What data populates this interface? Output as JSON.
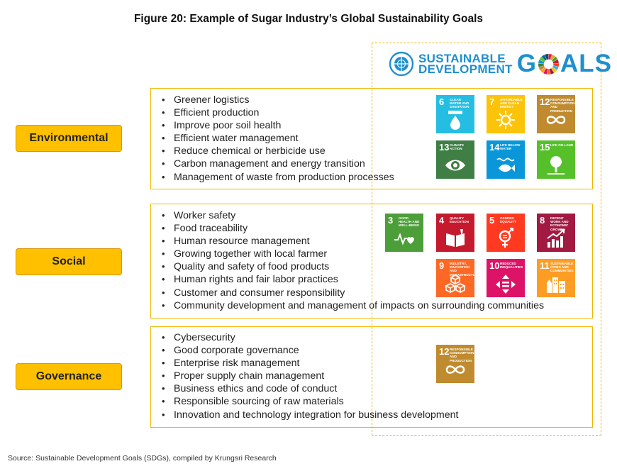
{
  "figure": {
    "title": "Figure 20: Example of Sugar Industry’s Global Sustainability Goals",
    "source": "Source: Sustainable Development Goals (SDGs), compiled by Krungsri Research"
  },
  "sdg_logo": {
    "line1": "SUSTAINABLE",
    "line2": "DEVELOPMENT",
    "goals_g": "G",
    "goals_als": "ALS"
  },
  "sections": [
    {
      "label": "Environmental",
      "items": [
        "Greener logistics",
        "Efficient production",
        "Improve poor soil health",
        "Efficient water management",
        "Reduce chemical or herbicide use",
        "Carbon management and energy transition",
        "Management of waste from production processes"
      ]
    },
    {
      "label": "Social",
      "items": [
        "Worker safety",
        "Food traceability",
        "Human resource management",
        "Growing together with local farmer",
        "Quality and safety of food products",
        "Human rights and fair labor practices",
        "Customer and consumer responsibility",
        "Community development and management of impacts on surrounding communities"
      ]
    },
    {
      "label": "Governance",
      "items": [
        "Cybersecurity",
        "Good corporate governance",
        "Enterprise risk management",
        "Proper supply chain management",
        "Business ethics and code of conduct",
        "Responsible sourcing of raw materials",
        "Innovation and technology integration for business development"
      ]
    }
  ],
  "sdg_tiles": {
    "g6": {
      "num": "6",
      "name": "Clean water and sanitation",
      "color": "#26bde2",
      "icon": "water-drop-icon"
    },
    "g7": {
      "num": "7",
      "name": "Affordable and clean energy",
      "color": "#fcc30b",
      "icon": "sun-icon"
    },
    "g12": {
      "num": "12",
      "name": "Responsible consumption and production",
      "color": "#bf8b2e",
      "icon": "infinity-icon"
    },
    "g13": {
      "num": "13",
      "name": "Climate action",
      "color": "#3f7e44",
      "icon": "eye-globe-icon"
    },
    "g14": {
      "num": "14",
      "name": "Life below water",
      "color": "#0a97d9",
      "icon": "fish-icon"
    },
    "g15": {
      "num": "15",
      "name": "Life on land",
      "color": "#56c02b",
      "icon": "tree-icon"
    },
    "g3": {
      "num": "3",
      "name": "Good health and well-being",
      "color": "#4c9f38",
      "icon": "heartbeat-icon"
    },
    "g4": {
      "num": "4",
      "name": "Quality education",
      "color": "#c5192d",
      "icon": "book-icon"
    },
    "g5": {
      "num": "5",
      "name": "Gender equality",
      "color": "#ff3a21",
      "icon": "gender-icon"
    },
    "g8": {
      "num": "8",
      "name": "Decent work and economic growth",
      "color": "#a21942",
      "icon": "growth-chart-icon"
    },
    "g9": {
      "num": "9",
      "name": "Industry, innovation and infrastructure",
      "color": "#fd6925",
      "icon": "cubes-icon"
    },
    "g10": {
      "num": "10",
      "name": "Reduced inequalities",
      "color": "#dd1367",
      "icon": "equality-icon"
    },
    "g11": {
      "num": "11",
      "name": "Sustainable cities and communities",
      "color": "#fd9d24",
      "icon": "city-icon"
    }
  }
}
